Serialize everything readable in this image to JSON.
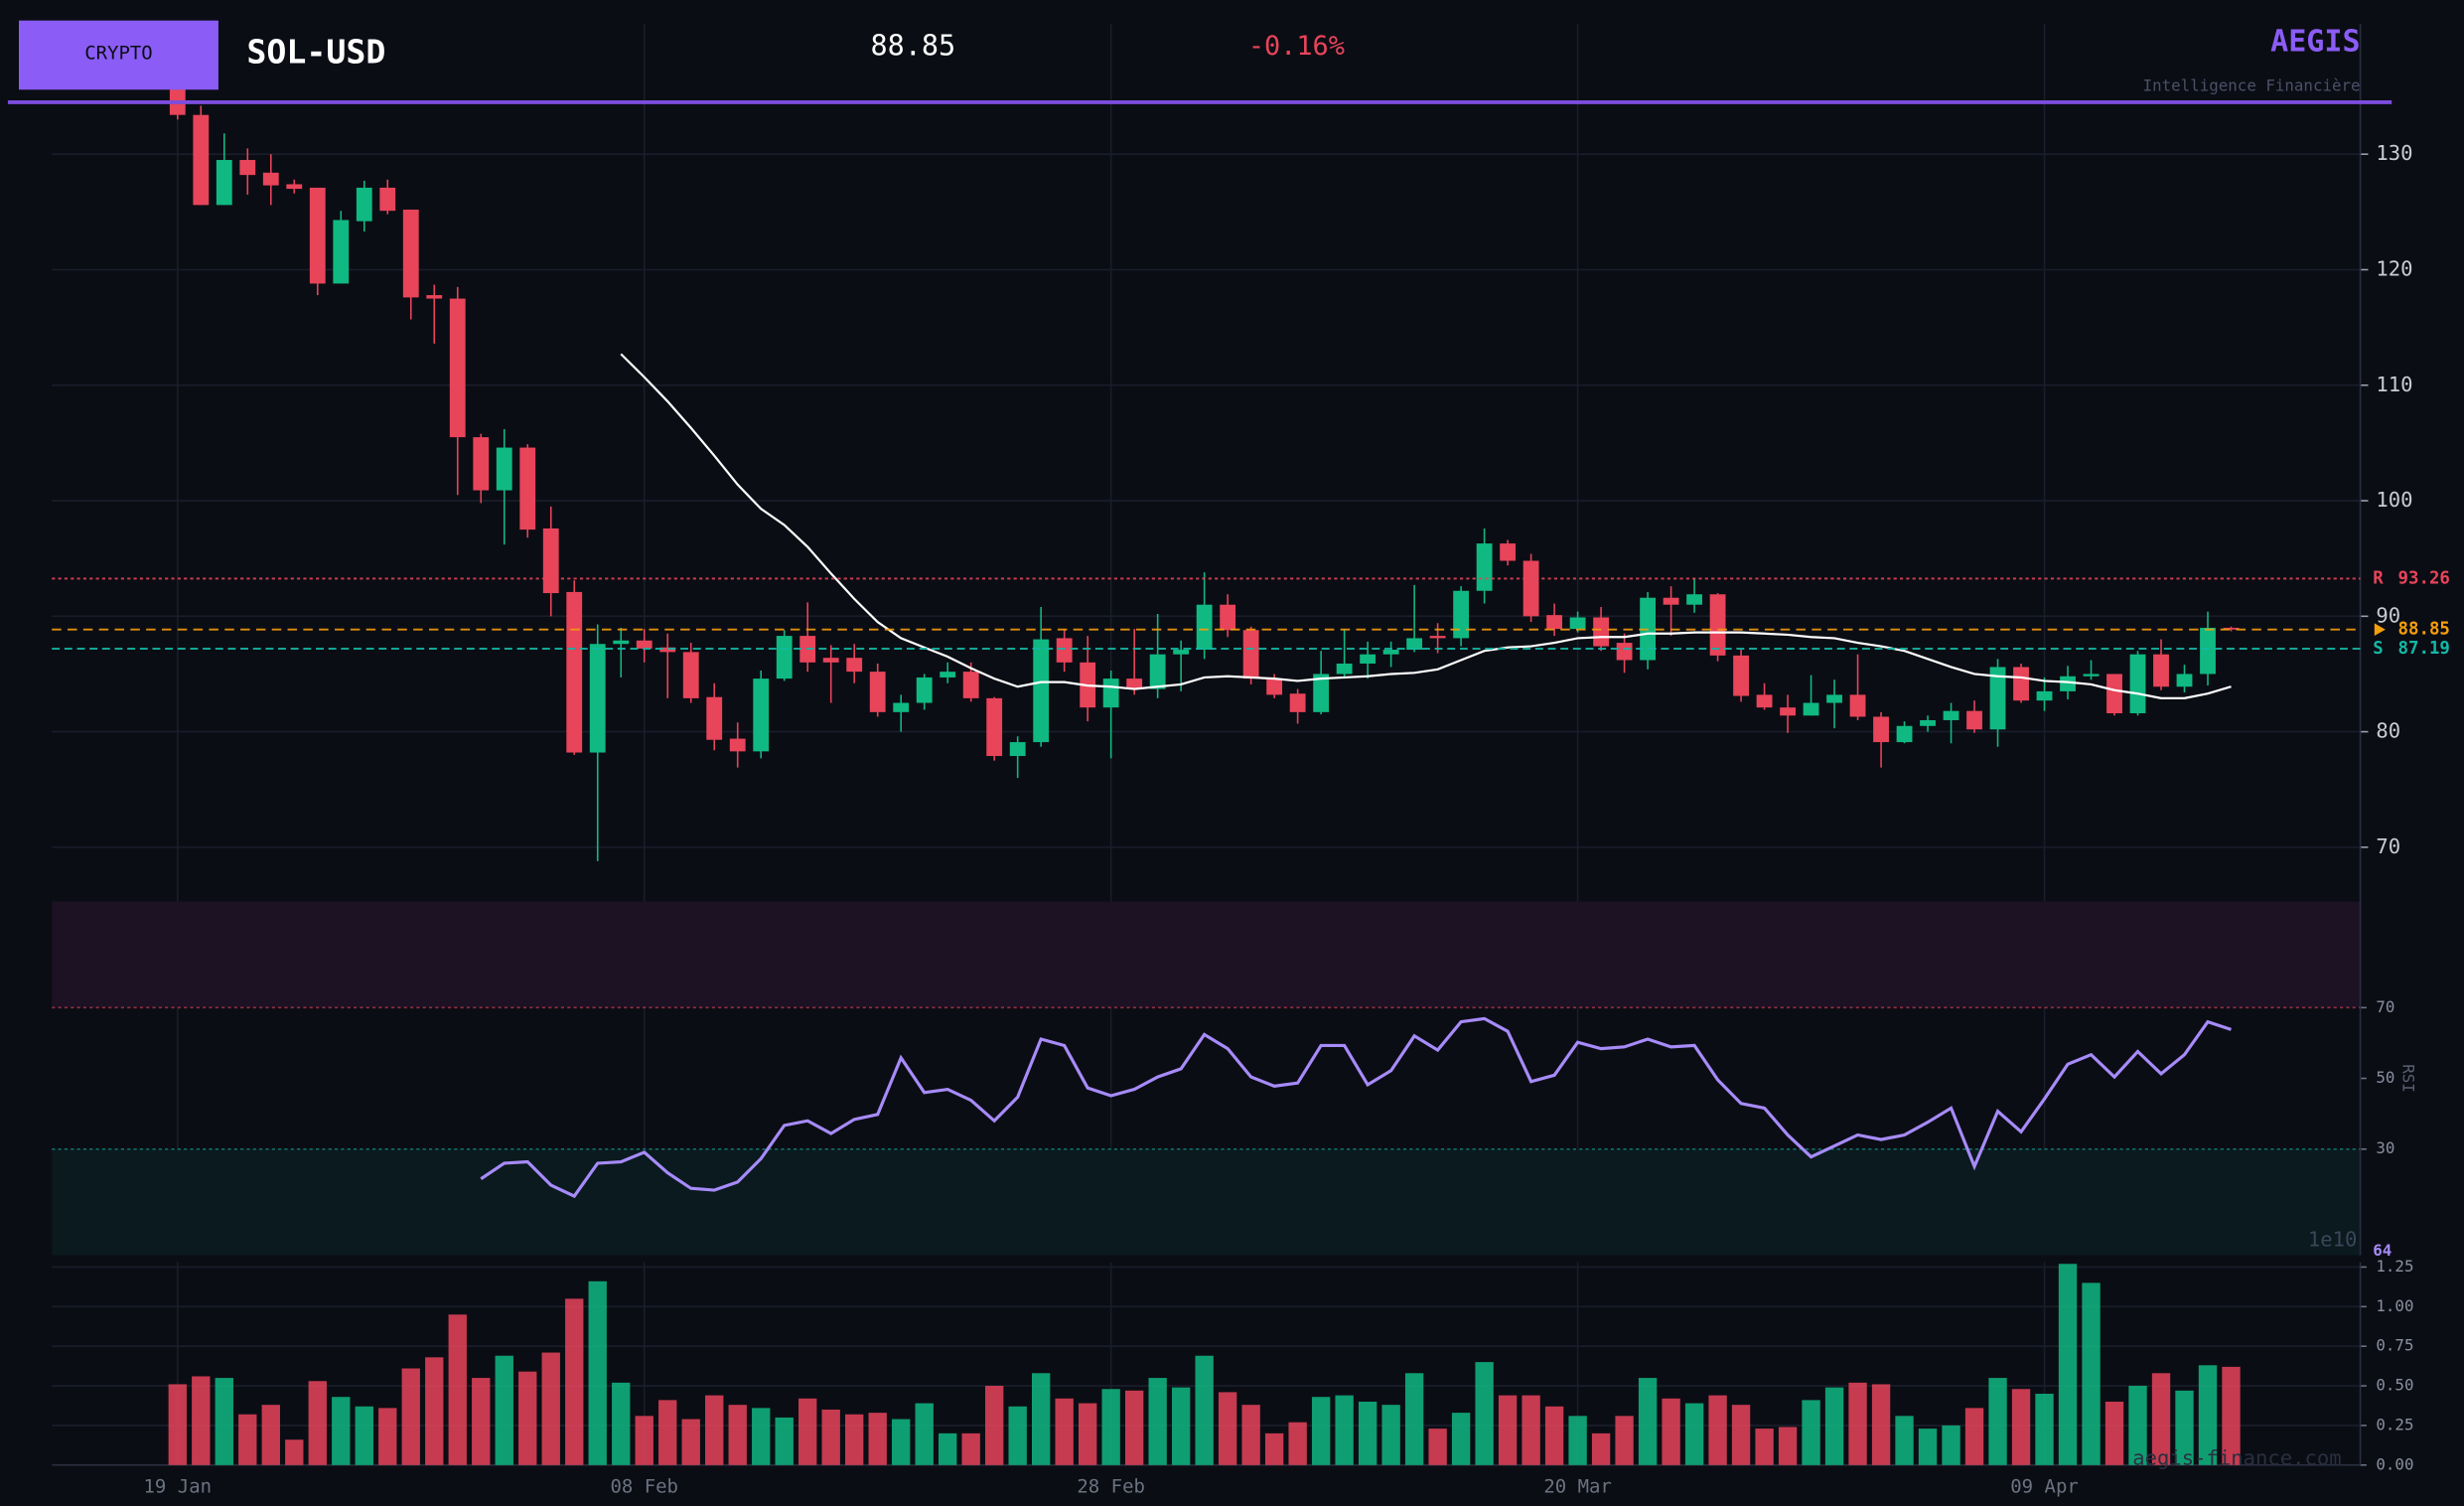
{
  "header": {
    "badge": "CRYPTO",
    "symbol": "SOL-USD",
    "price": 88.85,
    "change": "-0.16%",
    "brand": "AEGIS",
    "tagline": "Intelligence Financière",
    "watermark": "aegis-finance.com"
  },
  "chart_data": [
    {
      "type": "candlestick",
      "up_color": "#10b981",
      "down_color": "#e8445a",
      "sma_color": "#ffffff",
      "categories": [
        "19 Jan",
        null,
        null,
        null,
        null,
        null,
        null,
        null,
        null,
        null,
        null,
        null,
        null,
        null,
        null,
        null,
        null,
        null,
        null,
        null,
        "08 Feb",
        null,
        null,
        null,
        null,
        null,
        null,
        null,
        null,
        null,
        null,
        null,
        null,
        null,
        null,
        null,
        null,
        null,
        null,
        null,
        "28 Feb",
        null,
        null,
        null,
        null,
        null,
        null,
        null,
        null,
        null,
        null,
        null,
        null,
        null,
        null,
        null,
        null,
        null,
        null,
        null,
        "20 Mar",
        null,
        null,
        null,
        null,
        null,
        null,
        null,
        null,
        null,
        null,
        null,
        null,
        null,
        null,
        null,
        null,
        null,
        null,
        null,
        "09 Apr",
        null,
        null,
        null,
        null,
        null,
        null,
        null,
        null
      ],
      "open": [
        135.8,
        133.4,
        125.6,
        129.5,
        128.4,
        127.4,
        127.1,
        118.8,
        124.2,
        127.1,
        125.2,
        117.8,
        117.5,
        105.5,
        100.9,
        104.6,
        97.6,
        92.1,
        78.2,
        87.6,
        87.9,
        87.3,
        86.9,
        83.0,
        79.4,
        78.3,
        84.6,
        88.3,
        86.4,
        86.4,
        85.2,
        81.7,
        82.5,
        84.7,
        85.2,
        82.9,
        77.9,
        79.1,
        88.1,
        86.0,
        82.1,
        84.6,
        83.7,
        86.7,
        87.1,
        91.0,
        88.8,
        84.6,
        83.3,
        81.7,
        85.0,
        85.9,
        86.7,
        87.1,
        88.3,
        88.1,
        92.2,
        96.3,
        94.8,
        90.1,
        88.9,
        89.9,
        87.7,
        86.2,
        91.6,
        91.0,
        91.9,
        86.6,
        83.2,
        82.1,
        81.4,
        82.5,
        83.2,
        81.3,
        79.1,
        80.5,
        81.0,
        81.8,
        80.2,
        85.6,
        82.7,
        83.5,
        84.8,
        85.0,
        81.6,
        86.7,
        83.9,
        85.0,
        89.0
      ],
      "high": [
        136.5,
        134.2,
        131.8,
        130.5,
        130.0,
        127.8,
        127.1,
        125.1,
        127.7,
        127.8,
        125.2,
        118.7,
        118.5,
        105.8,
        106.2,
        104.9,
        99.5,
        93.1,
        89.3,
        89.0,
        88.9,
        88.5,
        87.7,
        84.2,
        80.8,
        85.3,
        88.8,
        91.2,
        87.5,
        87.6,
        85.9,
        83.2,
        85.0,
        86.0,
        86.0,
        83.0,
        79.6,
        90.8,
        88.9,
        88.3,
        85.3,
        88.9,
        90.2,
        87.9,
        93.8,
        91.9,
        89.1,
        85.0,
        83.7,
        87.0,
        88.9,
        87.8,
        87.8,
        92.7,
        89.4,
        92.6,
        97.6,
        96.6,
        95.4,
        91.1,
        90.4,
        90.8,
        88.5,
        92.1,
        92.6,
        93.3,
        92.0,
        87.1,
        84.2,
        83.2,
        84.9,
        84.5,
        86.7,
        81.7,
        80.9,
        81.4,
        82.5,
        82.7,
        86.3,
        85.9,
        84.7,
        85.7,
        86.2,
        85.0,
        87.0,
        88.0,
        85.8,
        90.4,
        89.1
      ],
      "low": [
        133,
        125.6,
        125.6,
        126.5,
        125.6,
        126.6,
        117.8,
        118.8,
        123.3,
        124.8,
        115.7,
        113.6,
        100.5,
        99.8,
        96.2,
        96.8,
        90.0,
        78.0,
        68.8,
        84.7,
        86.0,
        82.9,
        82.5,
        78.4,
        76.9,
        77.7,
        84.4,
        85.2,
        82.5,
        84.2,
        81.3,
        80.0,
        81.9,
        84.2,
        82.6,
        77.5,
        76.0,
        78.7,
        85.2,
        80.9,
        77.7,
        83.2,
        82.9,
        83.5,
        86.3,
        88.2,
        84.1,
        82.9,
        80.7,
        81.5,
        84.6,
        84.6,
        85.6,
        86.9,
        86.8,
        87.4,
        91.1,
        94.4,
        89.5,
        88.3,
        88.6,
        87.0,
        85.1,
        85.4,
        88.3,
        90.3,
        86.1,
        82.6,
        81.9,
        79.9,
        81.4,
        80.3,
        81.0,
        76.9,
        79.0,
        80.0,
        79.0,
        79.9,
        78.7,
        82.5,
        81.8,
        82.8,
        84.5,
        81.4,
        81.4,
        83.6,
        83.4,
        84.0,
        88.7
      ],
      "close": [
        133.4,
        125.6,
        129.5,
        128.2,
        127.3,
        127.0,
        118.8,
        124.3,
        127.1,
        125.1,
        117.6,
        117.5,
        105.5,
        100.9,
        104.6,
        97.5,
        92.0,
        78.2,
        87.6,
        87.9,
        87.2,
        86.9,
        82.9,
        79.3,
        78.3,
        84.6,
        88.3,
        86.0,
        86.0,
        85.2,
        81.7,
        82.5,
        84.7,
        85.2,
        82.9,
        77.9,
        79.1,
        88.0,
        86.0,
        82.1,
        84.6,
        83.7,
        86.7,
        87.1,
        91.0,
        88.8,
        84.6,
        83.2,
        81.7,
        85.0,
        85.9,
        86.7,
        87.1,
        88.1,
        88.1,
        92.2,
        96.3,
        94.8,
        90.0,
        88.9,
        89.9,
        87.4,
        86.2,
        91.6,
        91.0,
        91.9,
        86.6,
        83.1,
        82.1,
        81.4,
        82.5,
        83.2,
        81.3,
        79.1,
        80.5,
        81.0,
        81.8,
        80.2,
        85.6,
        82.7,
        83.5,
        84.8,
        85.0,
        81.6,
        86.7,
        83.9,
        85.0,
        89.0,
        88.85
      ],
      "sma": [
        null,
        null,
        null,
        null,
        null,
        null,
        null,
        null,
        null,
        null,
        null,
        null,
        null,
        null,
        null,
        null,
        null,
        null,
        null,
        112.7,
        110.7,
        108.6,
        106.3,
        103.9,
        101.4,
        99.3,
        97.9,
        96.0,
        93.7,
        91.5,
        89.5,
        88.1,
        87.3,
        86.5,
        85.5,
        84.6,
        83.9,
        84.3,
        84.3,
        84.0,
        83.9,
        83.7,
        83.9,
        84.1,
        84.7,
        84.8,
        84.7,
        84.6,
        84.4,
        84.6,
        84.7,
        84.8,
        85.0,
        85.1,
        85.4,
        86.2,
        87.0,
        87.3,
        87.4,
        87.7,
        88.1,
        88.2,
        88.2,
        88.5,
        88.5,
        88.6,
        88.6,
        88.6,
        88.5,
        88.4,
        88.2,
        88.1,
        87.7,
        87.4,
        87.0,
        86.3,
        85.6,
        85.0,
        84.8,
        84.7,
        84.4,
        84.3,
        84.1,
        83.6,
        83.3,
        82.9,
        82.9,
        83.3,
        83.9
      ],
      "resistance": {
        "label": "R",
        "value": 93.26,
        "color": "#e8445a"
      },
      "last_price": {
        "value": 88.85,
        "color": "#f59e0b"
      },
      "support": {
        "label": "S",
        "value": 87.19,
        "color": "#14b8a6"
      },
      "ylim": [
        65.3,
        141.3
      ],
      "yticks": [
        70,
        80,
        90,
        100,
        110,
        120,
        130
      ],
      "grid": true
    },
    {
      "type": "line",
      "name": "RSI",
      "ylabel": "RSI",
      "color": "#a78bfa",
      "current": 64,
      "overbought": 70,
      "oversold": 30,
      "values": [
        null,
        null,
        null,
        null,
        null,
        null,
        null,
        null,
        null,
        null,
        null,
        null,
        null,
        21.6,
        26.0,
        26.4,
        19.8,
        16.7,
        26.0,
        26.4,
        29.1,
        23.3,
        18.9,
        18.4,
        20.7,
        27.3,
        36.7,
        38.0,
        34.4,
        38.4,
        39.8,
        55.8,
        46.0,
        46.9,
        43.8,
        38.0,
        44.7,
        61.1,
        59.3,
        47.3,
        45.1,
        46.9,
        50.4,
        52.7,
        62.4,
        58.4,
        50.4,
        47.8,
        48.7,
        59.3,
        59.3,
        48.2,
        52.2,
        62.0,
        58.0,
        66.0,
        66.9,
        63.3,
        49.1,
        50.9,
        60.2,
        58.4,
        58.9,
        61.1,
        58.9,
        59.3,
        49.6,
        42.9,
        41.6,
        34.0,
        27.8,
        30.9,
        34.0,
        32.7,
        34.0,
        37.6,
        41.6,
        25.1,
        40.7,
        34.9,
        44.2,
        54.0,
        56.7,
        50.4,
        57.6,
        51.3,
        56.7,
        66.0,
        63.8
      ],
      "ylim": [
        0,
        100
      ],
      "yticks": [
        30,
        50,
        70
      ]
    },
    {
      "type": "bar",
      "name": "Volume",
      "offset_label": "1e10",
      "values": [
        0.51,
        0.56,
        0.55,
        0.32,
        0.38,
        0.16,
        0.53,
        0.43,
        0.37,
        0.36,
        0.61,
        0.68,
        0.95,
        0.55,
        0.69,
        0.59,
        0.71,
        1.05,
        1.16,
        0.52,
        0.31,
        0.41,
        0.29,
        0.44,
        0.38,
        0.36,
        0.3,
        0.42,
        0.35,
        0.32,
        0.33,
        0.29,
        0.39,
        0.2,
        0.2,
        0.5,
        0.37,
        0.58,
        0.42,
        0.39,
        0.48,
        0.47,
        0.55,
        0.49,
        0.69,
        0.46,
        0.38,
        0.2,
        0.27,
        0.43,
        0.44,
        0.4,
        0.38,
        0.58,
        0.23,
        0.33,
        0.65,
        0.44,
        0.44,
        0.37,
        0.31,
        0.2,
        0.31,
        0.55,
        0.42,
        0.39,
        0.44,
        0.38,
        0.23,
        0.24,
        0.41,
        0.49,
        0.52,
        0.51,
        0.31,
        0.23,
        0.25,
        0.36,
        0.55,
        0.48,
        0.45,
        1.27,
        1.15,
        0.4,
        0.5,
        0.58,
        0.47,
        0.63,
        0.62
      ],
      "ylim": [
        0,
        1.28
      ],
      "yticks": [
        {
          "value": 0,
          "label": "0.00"
        },
        {
          "value": 0.25,
          "label": "0.25"
        },
        {
          "value": 0.5,
          "label": "0.50"
        },
        {
          "value": 0.75,
          "label": "0.75"
        },
        {
          "value": 1,
          "label": "1.00"
        },
        {
          "value": 1.25,
          "label": "1.25"
        }
      ]
    }
  ]
}
